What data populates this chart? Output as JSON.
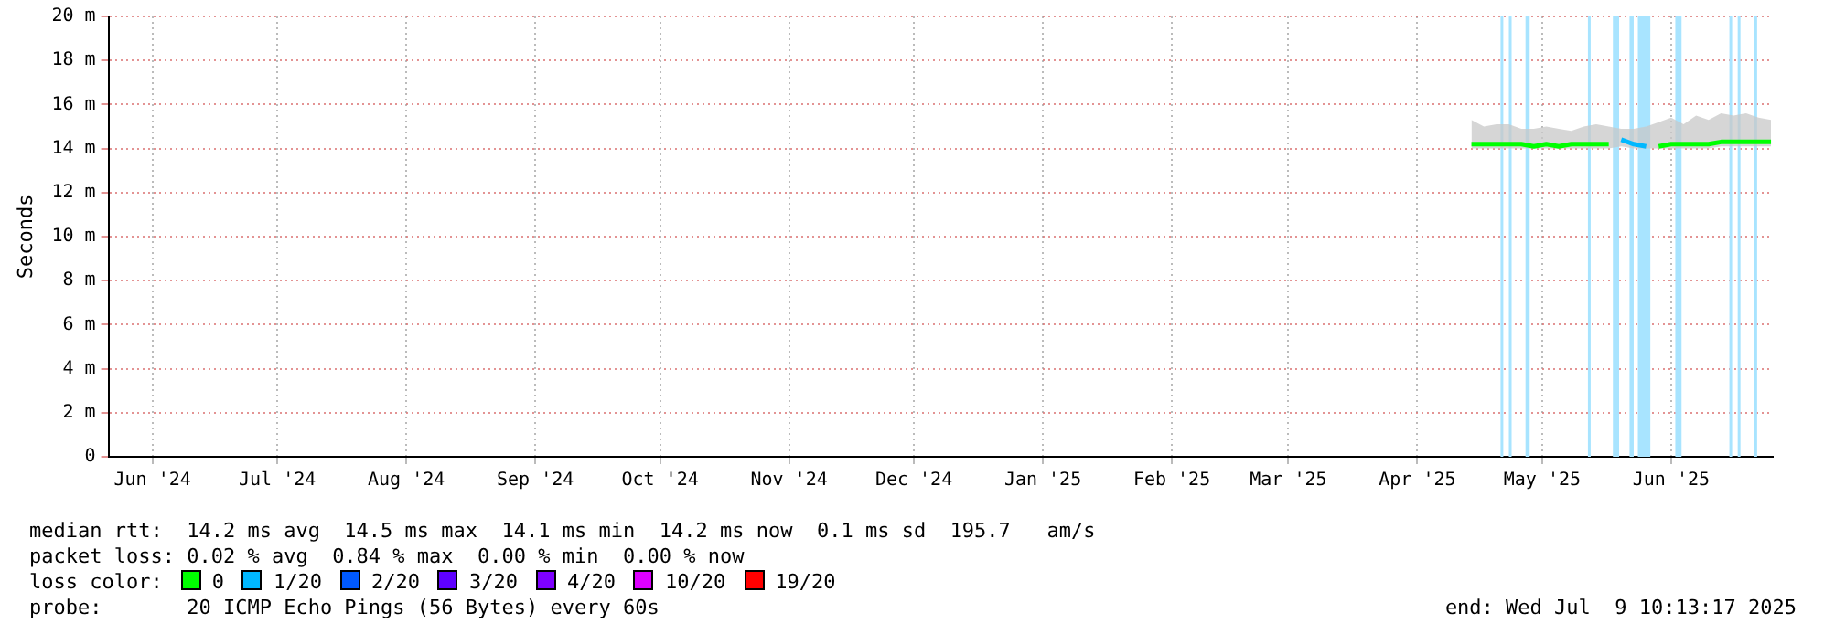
{
  "chart_data": {
    "type": "line",
    "ylabel": "Seconds",
    "x": [
      "2025-04-28",
      "2025-05-01",
      "2025-05-04",
      "2025-05-07",
      "2025-05-10",
      "2025-05-13",
      "2025-05-16",
      "2025-05-19",
      "2025-05-22",
      "2025-05-25",
      "2025-05-28",
      "2025-05-31",
      "2025-06-03",
      "2025-06-06",
      "2025-06-09",
      "2025-06-12",
      "2025-06-15",
      "2025-06-18",
      "2025-06-21",
      "2025-06-24",
      "2025-06-27",
      "2025-06-30",
      "2025-07-03",
      "2025-07-06",
      "2025-07-09"
    ],
    "series": [
      {
        "name": "0",
        "color": "#00ff00",
        "values": [
          14.2,
          14.2,
          14.2,
          14.2,
          14.2,
          14.1,
          14.2,
          14.1,
          14.2,
          14.2,
          14.2,
          14.2,
          null,
          null,
          null,
          14.1,
          14.2,
          14.2,
          14.2,
          14.2,
          14.3,
          14.3,
          14.3,
          14.3,
          14.3
        ],
        "lower": [
          14.0,
          14.0,
          14.0,
          14.0,
          14.0,
          14.0,
          14.0,
          14.0,
          14.0,
          14.0,
          14.0,
          14.0,
          14.1,
          14.0,
          14.0,
          14.0,
          14.0,
          14.0,
          14.0,
          14.0,
          14.1,
          14.1,
          14.1,
          14.1,
          14.1
        ],
        "upper": [
          15.3,
          15.0,
          15.1,
          15.1,
          14.9,
          14.9,
          15.0,
          14.9,
          14.8,
          15.0,
          15.1,
          15.0,
          14.9,
          14.9,
          15.0,
          15.2,
          15.4,
          15.1,
          15.5,
          15.3,
          15.6,
          15.5,
          15.6,
          15.4,
          15.3
        ]
      },
      {
        "name": "1/20",
        "color": "#00b8ff",
        "values": [
          null,
          null,
          null,
          null,
          null,
          null,
          null,
          null,
          null,
          null,
          null,
          null,
          14.4,
          14.2,
          14.1,
          null,
          null,
          null,
          null,
          null,
          null,
          null,
          null,
          null,
          null
        ]
      },
      {
        "name": "2/20",
        "color": "#0059ff",
        "values": [
          null,
          null,
          null,
          null,
          null,
          null,
          null,
          null,
          null,
          null,
          null,
          null,
          null,
          null,
          null,
          null,
          null,
          null,
          null,
          null,
          null,
          null,
          null,
          null,
          null
        ]
      },
      {
        "name": "3/20",
        "color": "#5e00ff",
        "values": [
          null,
          null,
          null,
          null,
          null,
          null,
          null,
          null,
          null,
          null,
          null,
          null,
          null,
          null,
          null,
          null,
          null,
          null,
          null,
          null,
          null,
          null,
          null,
          null,
          null
        ]
      },
      {
        "name": "4/20",
        "color": "#7e00ff",
        "values": [
          null,
          null,
          null,
          null,
          null,
          null,
          null,
          null,
          null,
          null,
          null,
          null,
          null,
          null,
          null,
          null,
          null,
          null,
          null,
          null,
          null,
          null,
          null,
          null,
          null
        ]
      },
      {
        "name": "10/20",
        "color": "#dd00ff",
        "values": [
          null,
          null,
          null,
          null,
          null,
          null,
          null,
          null,
          null,
          null,
          null,
          null,
          null,
          null,
          null,
          null,
          null,
          null,
          null,
          null,
          null,
          null,
          null,
          null,
          null
        ]
      },
      {
        "name": "19/20",
        "color": "#ff0000",
        "values": [
          null,
          null,
          null,
          null,
          null,
          null,
          null,
          null,
          null,
          null,
          null,
          null,
          null,
          null,
          null,
          null,
          null,
          null,
          null,
          null,
          null,
          null,
          null,
          null,
          null
        ]
      }
    ],
    "bands": [
      {
        "axis": "x",
        "from": "2025-05-05",
        "to": "2025-05-05T12:00",
        "color": "#a8e4ff"
      },
      {
        "axis": "x",
        "from": "2025-05-07",
        "to": "2025-05-07T12:00",
        "color": "#a8e4ff"
      },
      {
        "axis": "x",
        "from": "2025-05-11",
        "to": "2025-05-12",
        "color": "#a8e4ff"
      },
      {
        "axis": "x",
        "from": "2025-05-26",
        "to": "2025-05-26T12:00",
        "color": "#a8e4ff"
      },
      {
        "axis": "x",
        "from": "2025-06-01",
        "to": "2025-06-02T12:00",
        "color": "#a8e4ff"
      },
      {
        "axis": "x",
        "from": "2025-06-05",
        "to": "2025-06-06",
        "color": "#a8e4ff"
      },
      {
        "axis": "x",
        "from": "2025-06-07",
        "to": "2025-06-10",
        "color": "#a8e4ff"
      },
      {
        "axis": "x",
        "from": "2025-06-16",
        "to": "2025-06-17T12:00",
        "color": "#a8e4ff"
      },
      {
        "axis": "x",
        "from": "2025-06-29",
        "to": "2025-06-29T12:00",
        "color": "#a8e4ff"
      },
      {
        "axis": "x",
        "from": "2025-07-01",
        "to": "2025-07-01T12:00",
        "color": "#a8e4ff"
      },
      {
        "axis": "x",
        "from": "2025-07-05",
        "to": "2025-07-05T12:00",
        "color": "#a8e4ff"
      }
    ],
    "xlim": [
      "2024-06-04T10:13",
      "2025-07-09T10:13"
    ],
    "xticks": [
      {
        "value": "2024-06-15",
        "label": "Jun '24"
      },
      {
        "value": "2024-07-15",
        "label": "Jul '24"
      },
      {
        "value": "2024-08-15",
        "label": "Aug '24"
      },
      {
        "value": "2024-09-15",
        "label": "Sep '24"
      },
      {
        "value": "2024-10-15",
        "label": "Oct '24"
      },
      {
        "value": "2024-11-15",
        "label": "Nov '24"
      },
      {
        "value": "2024-12-15",
        "label": "Dec '24"
      },
      {
        "value": "2025-01-15",
        "label": "Jan '25"
      },
      {
        "value": "2025-02-15",
        "label": "Feb '25"
      },
      {
        "value": "2025-03-15",
        "label": "Mar '25"
      },
      {
        "value": "2025-04-15",
        "label": "Apr '25"
      },
      {
        "value": "2025-05-15",
        "label": "May '25"
      },
      {
        "value": "2025-06-15",
        "label": "Jun '25"
      }
    ],
    "ylim": [
      0,
      20
    ],
    "yticks": [
      0,
      {
        "value": 2,
        "label": "2 m"
      },
      {
        "value": 4,
        "label": "4 m"
      },
      {
        "value": 6,
        "label": "6 m"
      },
      {
        "value": 8,
        "label": "8 m"
      },
      {
        "value": 10,
        "label": "10 m"
      },
      {
        "value": 12,
        "label": "12 m"
      },
      {
        "value": 14,
        "label": "14 m"
      },
      {
        "value": 16,
        "label": "16 m"
      },
      {
        "value": 18,
        "label": "18 m"
      },
      {
        "value": 20,
        "label": "20 m"
      }
    ],
    "grid": true,
    "legend": "bottom",
    "legend_title": "loss color:",
    "annotations": [
      "median rtt:  14.2 ms avg  14.5 ms max  14.1 ms min  14.2 ms now  0.1 ms sd  195.7   am/s",
      "packet loss: 0.02 % avg  0.84 % max  0.00 % min  0.00 % now",
      "probe:       20 ICMP Echo Pings (56 Bytes) every 60s",
      "end: Wed Jul  9 10:13:17 2025"
    ]
  }
}
